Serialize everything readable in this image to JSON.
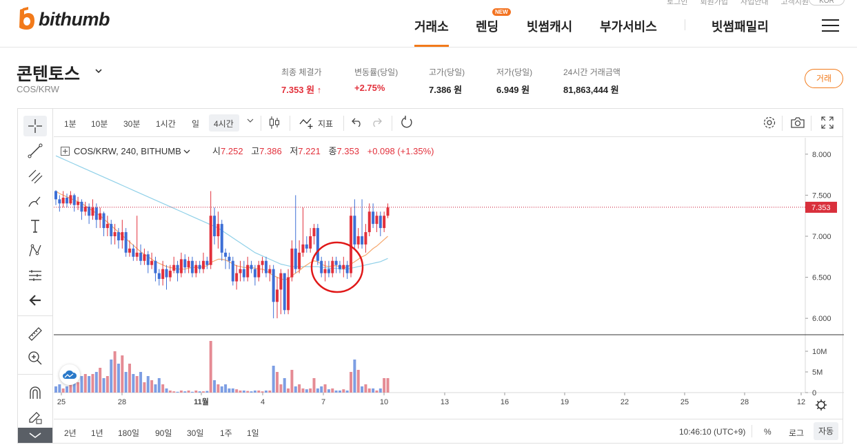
{
  "util_links": [
    "로그인",
    "회원가입",
    "사업안내",
    "고객지원"
  ],
  "lang": "KOR",
  "logo": {
    "text": "bithumb"
  },
  "nav": {
    "items": [
      "거래소",
      "렌딩",
      "빗썸캐시",
      "부가서비스",
      "빗썸패밀리"
    ],
    "new_badge": "NEW"
  },
  "coin": {
    "name": "콘텐토스",
    "pair": "COS/KRW"
  },
  "stats": [
    {
      "label": "최종 체결가",
      "value": "7.353 원 ↑"
    },
    {
      "label": "변동률(당일)",
      "value": "+2.75%"
    },
    {
      "label": "고가(당일)",
      "value": "7.386 원"
    },
    {
      "label": "저가(당일)",
      "value": "6.949 원"
    },
    {
      "label": "24시간 거래금액",
      "value": "81,863,444 원"
    }
  ],
  "trade_button": "거래",
  "toolbar": {
    "intervals": [
      "1분",
      "10분",
      "30분",
      "1시간",
      "일",
      "4시간"
    ],
    "indicator": "지표"
  },
  "legend": {
    "symbol": "COS/KRW, 240, BITHUMB",
    "o_label": "시",
    "o": "7.252",
    "h_label": "고",
    "h": "7.386",
    "l_label": "저",
    "l": "7.221",
    "c_label": "종",
    "c": "7.353",
    "change": "+0.098 (+1.35%)"
  },
  "ranges": [
    "2년",
    "1년",
    "180일",
    "90일",
    "30일",
    "1주",
    "1일"
  ],
  "bottom_right": {
    "time": "10:46:10 (UTC+9)",
    "percent": "%",
    "log": "로그",
    "auto": "자동"
  },
  "colors": {
    "up": "#e2303b",
    "down": "#3d6fd6",
    "accent": "#f27a1a",
    "ma_fast": "#f5a66b",
    "ma_slow": "#8fd0e8"
  },
  "chart_data": {
    "type": "candlestick",
    "price_ticks": [
      "8.000",
      "7.500",
      "7.000",
      "6.500",
      "6.000"
    ],
    "price_range": [
      5.8,
      8.2
    ],
    "volume_ticks": [
      "10M",
      "5M",
      "0"
    ],
    "date_ticks": [
      "25",
      "28",
      "11월",
      "4",
      "7",
      "10",
      "13",
      "16",
      "19",
      "22",
      "25",
      "28",
      "12"
    ],
    "last_price": "7.353",
    "candles": [
      [
        7.55,
        7.45,
        7.56,
        7.38
      ],
      [
        7.45,
        7.4,
        7.5,
        7.3
      ],
      [
        7.4,
        7.47,
        7.55,
        7.35
      ],
      [
        7.47,
        7.4,
        7.52,
        7.35
      ],
      [
        7.4,
        7.5,
        7.55,
        7.38
      ],
      [
        7.5,
        7.38,
        7.52,
        7.3
      ],
      [
        7.38,
        7.42,
        7.48,
        7.32
      ],
      [
        7.42,
        7.3,
        7.45,
        7.2
      ],
      [
        7.3,
        7.36,
        7.42,
        7.25
      ],
      [
        7.36,
        7.25,
        7.4,
        7.15
      ],
      [
        7.25,
        7.35,
        7.45,
        7.2
      ],
      [
        7.35,
        7.2,
        7.4,
        7.1
      ],
      [
        7.2,
        7.28,
        7.35,
        7.1
      ],
      [
        7.28,
        7.1,
        7.3,
        7.0
      ],
      [
        7.1,
        7.15,
        7.25,
        7.0
      ],
      [
        7.15,
        7.0,
        7.2,
        6.9
      ],
      [
        7.0,
        7.05,
        7.15,
        6.9
      ],
      [
        7.05,
        6.95,
        7.1,
        6.85
      ],
      [
        6.95,
        7.05,
        7.2,
        6.85
      ],
      [
        7.05,
        6.8,
        7.1,
        6.75
      ],
      [
        6.8,
        6.85,
        6.95,
        6.75
      ],
      [
        6.85,
        6.75,
        6.9,
        6.7
      ],
      [
        6.75,
        6.8,
        7.25,
        6.7
      ],
      [
        6.8,
        6.7,
        6.9,
        6.65
      ],
      [
        6.7,
        6.78,
        6.85,
        6.65
      ],
      [
        6.78,
        6.65,
        6.82,
        6.55
      ],
      [
        6.65,
        6.7,
        6.8,
        6.6
      ],
      [
        6.7,
        6.55,
        6.75,
        6.45
      ],
      [
        6.55,
        6.48,
        6.6,
        6.4
      ],
      [
        6.48,
        6.6,
        6.7,
        6.4
      ],
      [
        6.6,
        6.5,
        6.65,
        6.35
      ],
      [
        6.5,
        6.58,
        6.65,
        6.45
      ],
      [
        6.58,
        6.65,
        6.75,
        6.55
      ],
      [
        6.65,
        6.55,
        6.7,
        6.45
      ],
      [
        6.55,
        6.72,
        6.8,
        6.5
      ],
      [
        6.72,
        6.62,
        6.78,
        6.55
      ],
      [
        6.62,
        6.7,
        6.75,
        6.55
      ],
      [
        6.7,
        6.55,
        6.75,
        6.5
      ],
      [
        6.55,
        6.65,
        6.7,
        6.5
      ],
      [
        6.65,
        6.6,
        6.7,
        6.55
      ],
      [
        6.6,
        6.7,
        6.8,
        6.55
      ],
      [
        6.7,
        6.65,
        6.75,
        6.6
      ],
      [
        6.65,
        7.25,
        7.55,
        6.6
      ],
      [
        7.25,
        7.0,
        7.35,
        6.9
      ],
      [
        7.0,
        7.15,
        7.3,
        6.85
      ],
      [
        7.15,
        6.8,
        7.2,
        6.7
      ],
      [
        6.8,
        6.75,
        6.85,
        6.6
      ],
      [
        6.75,
        6.7,
        6.8,
        6.6
      ],
      [
        6.7,
        6.45,
        6.75,
        6.4
      ],
      [
        6.45,
        6.55,
        6.65,
        6.35
      ],
      [
        6.55,
        6.6,
        6.7,
        6.45
      ],
      [
        6.6,
        6.5,
        6.7,
        6.45
      ],
      [
        6.5,
        6.65,
        6.75,
        6.45
      ],
      [
        6.65,
        6.6,
        6.7,
        6.55
      ],
      [
        6.6,
        6.5,
        6.65,
        6.4
      ],
      [
        6.5,
        6.65,
        6.7,
        6.45
      ],
      [
        6.65,
        6.7,
        6.75,
        6.55
      ],
      [
        6.7,
        6.55,
        6.75,
        6.5
      ],
      [
        6.55,
        6.6,
        6.65,
        6.45
      ],
      [
        6.6,
        6.2,
        6.65,
        6.0
      ],
      [
        6.2,
        6.35,
        6.5,
        6.0
      ],
      [
        6.35,
        6.55,
        6.6,
        6.05
      ],
      [
        6.55,
        6.1,
        6.55,
        6.05
      ],
      [
        6.1,
        6.5,
        6.6,
        6.05
      ],
      [
        6.5,
        6.85,
        6.95,
        6.45
      ],
      [
        6.85,
        6.6,
        7.5,
        6.55
      ],
      [
        6.6,
        6.8,
        6.95,
        6.55
      ],
      [
        6.8,
        6.9,
        7.35,
        6.75
      ],
      [
        6.9,
        6.85,
        7.0,
        6.8
      ],
      [
        6.85,
        7.0,
        7.1,
        6.8
      ],
      [
        7.0,
        7.1,
        7.15,
        6.9
      ],
      [
        7.1,
        6.7,
        7.15,
        6.65
      ],
      [
        6.7,
        6.55,
        6.75,
        6.5
      ],
      [
        6.55,
        6.6,
        6.7,
        6.45
      ],
      [
        6.6,
        6.55,
        6.7,
        6.5
      ],
      [
        6.55,
        6.7,
        6.75,
        6.5
      ],
      [
        6.7,
        6.65,
        6.75,
        6.55
      ],
      [
        6.65,
        6.6,
        6.7,
        6.55
      ],
      [
        6.6,
        6.65,
        6.75,
        6.5
      ],
      [
        6.65,
        6.55,
        6.7,
        6.48
      ],
      [
        6.55,
        7.25,
        7.35,
        6.5
      ],
      [
        7.25,
        6.9,
        7.45,
        6.85
      ],
      [
        6.9,
        7.0,
        7.1,
        6.85
      ],
      [
        7.0,
        6.9,
        7.45,
        6.85
      ],
      [
        6.9,
        7.05,
        7.15,
        6.8
      ],
      [
        7.05,
        7.3,
        7.4,
        7.0
      ],
      [
        7.3,
        7.15,
        7.4,
        7.1
      ],
      [
        7.15,
        7.25,
        7.3,
        7.05
      ],
      [
        7.25,
        7.1,
        7.3,
        7.0
      ],
      [
        7.1,
        7.25,
        7.3,
        7.05
      ],
      [
        7.25,
        7.35,
        7.4,
        7.22
      ]
    ],
    "ma_fast": [
      7.55,
      7.52,
      7.5,
      7.48,
      7.46,
      7.44,
      7.42,
      7.4,
      7.37,
      7.34,
      7.31,
      7.28,
      7.25,
      7.21,
      7.17,
      7.13,
      7.09,
      7.05,
      7.01,
      6.97,
      6.93,
      6.89,
      6.85,
      6.81,
      6.78,
      6.75,
      6.72,
      6.69,
      6.67,
      6.65,
      6.63,
      6.62,
      6.61,
      6.6,
      6.6,
      6.6,
      6.61,
      6.62,
      6.62,
      6.62,
      6.63,
      6.64,
      6.68,
      6.7,
      6.72,
      6.72,
      6.71,
      6.69,
      6.66,
      6.64,
      6.63,
      6.62,
      6.62,
      6.62,
      6.61,
      6.6,
      6.6,
      6.58,
      6.55,
      6.52,
      6.5,
      6.48,
      6.47,
      6.48,
      6.52,
      6.55,
      6.58,
      6.62,
      6.65,
      6.68,
      6.7,
      6.69,
      6.66,
      6.64,
      6.63,
      6.64,
      6.64,
      6.63,
      6.62,
      6.62,
      6.66,
      6.69,
      6.72,
      6.75,
      6.77,
      6.81,
      6.85,
      6.88,
      6.92,
      6.96,
      7.0
    ],
    "ma_slow": [
      7.98,
      7.96,
      7.94,
      7.92,
      7.9,
      7.88,
      7.86,
      7.84,
      7.82,
      7.8,
      7.78,
      7.76,
      7.74,
      7.72,
      7.7,
      7.68,
      7.66,
      7.64,
      7.62,
      7.6,
      7.58,
      7.56,
      7.54,
      7.52,
      7.5,
      7.48,
      7.46,
      7.44,
      7.42,
      7.4,
      7.38,
      7.36,
      7.34,
      7.32,
      7.3,
      7.28,
      7.26,
      7.24,
      7.22,
      7.2,
      7.18,
      7.16,
      7.14,
      7.12,
      7.1,
      7.07,
      7.04,
      7.01,
      6.98,
      6.95,
      6.92,
      6.89,
      6.86,
      6.83,
      6.8,
      6.78,
      6.76,
      6.74,
      6.72,
      6.7,
      6.68,
      6.66,
      6.65,
      6.64,
      6.63,
      6.63,
      6.63,
      6.63,
      6.63,
      6.63,
      6.63,
      6.63,
      6.62,
      6.62,
      6.61,
      6.61,
      6.61,
      6.6,
      6.6,
      6.6,
      6.61,
      6.62,
      6.63,
      6.64,
      6.65,
      6.66,
      6.67,
      6.68,
      6.69,
      6.71,
      6.73
    ],
    "volumes": [
      1.5,
      2.0,
      1.0,
      1.5,
      3.0,
      3.5,
      2.5,
      4.0,
      4.5,
      4.0,
      4.5,
      5.0,
      6.0,
      3.5,
      4.0,
      8.0,
      10.0,
      7.0,
      9.0,
      5.0,
      7.0,
      4.5,
      4.0,
      5.0,
      2.5,
      4.0,
      3.0,
      2.0,
      3.5,
      2.0,
      1.0,
      0.5,
      0.3,
      0.2,
      0.5,
      0.3,
      0.5,
      0.2,
      0.5,
      0.3,
      0.3,
      0.4,
      12.5,
      3.0,
      2.0,
      1.5,
      2.0,
      1.0,
      1.0,
      0.8,
      0.5,
      0.5,
      0.4,
      0.3,
      0.5,
      0.5,
      0.3,
      0.5,
      0.5,
      6.5,
      5.0,
      2.0,
      3.5,
      1.0,
      5.5,
      1.5,
      2.0,
      1.0,
      0.8,
      1.0,
      3.5,
      1.0,
      1.5,
      2.0,
      0.8,
      1.0,
      0.5,
      0.5,
      0.8,
      0.5,
      5.0,
      8.0,
      5.5,
      1.5,
      2.0,
      1.0,
      1.0,
      0.5,
      1.0,
      3.5,
      3.5
    ]
  }
}
